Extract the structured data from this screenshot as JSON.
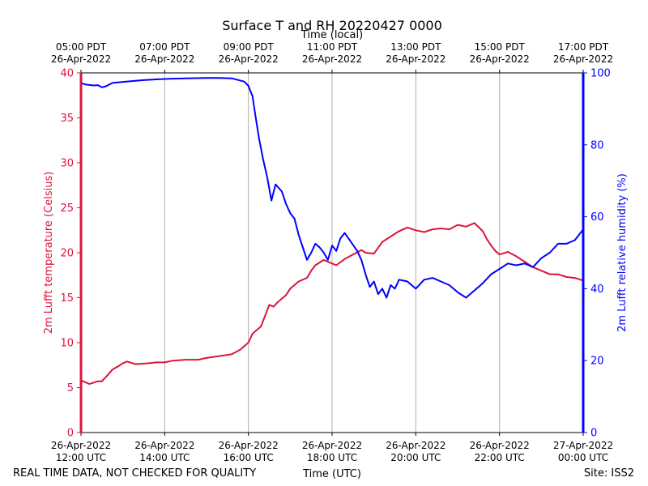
{
  "chart_data": {
    "type": "line",
    "title": "Surface T and RH 20220427 0000",
    "top_axis_title": "Time (local)",
    "bottom_axis_title": "Time (UTC)",
    "footer_left": "REAL TIME DATA, NOT CHECKED FOR QUALITY",
    "footer_right": "Site: ISS2",
    "x_range_hours": [
      12,
      24
    ],
    "x_ticks_utc": [
      {
        "h": 12,
        "date": "26-Apr-2022",
        "time": "12:00 UTC"
      },
      {
        "h": 14,
        "date": "26-Apr-2022",
        "time": "14:00 UTC"
      },
      {
        "h": 16,
        "date": "26-Apr-2022",
        "time": "16:00 UTC"
      },
      {
        "h": 18,
        "date": "26-Apr-2022",
        "time": "18:00 UTC"
      },
      {
        "h": 20,
        "date": "26-Apr-2022",
        "time": "20:00 UTC"
      },
      {
        "h": 22,
        "date": "26-Apr-2022",
        "time": "22:00 UTC"
      },
      {
        "h": 24,
        "date": "27-Apr-2022",
        "time": "00:00 UTC"
      }
    ],
    "x_ticks_local": [
      {
        "h": 12,
        "time": "05:00 PDT",
        "date": "26-Apr-2022"
      },
      {
        "h": 14,
        "time": "07:00 PDT",
        "date": "26-Apr-2022"
      },
      {
        "h": 16,
        "time": "09:00 PDT",
        "date": "26-Apr-2022"
      },
      {
        "h": 18,
        "time": "11:00 PDT",
        "date": "26-Apr-2022"
      },
      {
        "h": 20,
        "time": "13:00 PDT",
        "date": "26-Apr-2022"
      },
      {
        "h": 22,
        "time": "15:00 PDT",
        "date": "26-Apr-2022"
      },
      {
        "h": 24,
        "time": "17:00 PDT",
        "date": "26-Apr-2022"
      }
    ],
    "left_axis": {
      "label": "2m Lufft temperature (Celsius)",
      "ylim": [
        0,
        40
      ],
      "ticks": [
        "0",
        "5",
        "10",
        "15",
        "20",
        "25",
        "30",
        "35",
        "40"
      ],
      "color": "#dc143c"
    },
    "right_axis": {
      "label": "2m Lufft relative humidity (%)",
      "ylim": [
        0,
        100
      ],
      "ticks": [
        "0",
        "20",
        "40",
        "60",
        "80",
        "100"
      ],
      "color": "#0000ff"
    },
    "grid": "vertical",
    "series": [
      {
        "name": "2m Lufft temperature",
        "axis": "left",
        "color": "#dc143c",
        "x": [
          12.0,
          12.1,
          12.2,
          12.4,
          12.5,
          12.6,
          12.75,
          12.9,
          13.0,
          13.1,
          13.3,
          13.6,
          13.8,
          14.0,
          14.2,
          14.5,
          14.8,
          15.0,
          15.3,
          15.6,
          15.8,
          16.0,
          16.1,
          16.3,
          16.4,
          16.5,
          16.6,
          16.7,
          16.9,
          17.0,
          17.2,
          17.4,
          17.5,
          17.6,
          17.8,
          18.0,
          18.1,
          18.3,
          18.5,
          18.7,
          18.8,
          19.0,
          19.2,
          19.4,
          19.6,
          19.8,
          20.0,
          20.2,
          20.4,
          20.6,
          20.8,
          21.0,
          21.2,
          21.4,
          21.6,
          21.7,
          21.8,
          21.9,
          22.0,
          22.2,
          22.4,
          22.6,
          22.8,
          23.0,
          23.2,
          23.4,
          23.6,
          23.8,
          24.0
        ],
        "y": [
          5.8,
          5.6,
          5.4,
          5.7,
          5.7,
          6.2,
          7.0,
          7.4,
          7.7,
          7.9,
          7.6,
          7.7,
          7.8,
          7.8,
          8.0,
          8.1,
          8.1,
          8.3,
          8.5,
          8.7,
          9.2,
          10.0,
          11.0,
          11.8,
          13.0,
          14.2,
          14.0,
          14.5,
          15.3,
          16.0,
          16.8,
          17.2,
          18.0,
          18.6,
          19.2,
          18.8,
          18.6,
          19.3,
          19.8,
          20.3,
          20.0,
          19.9,
          21.2,
          21.8,
          22.4,
          22.8,
          22.5,
          22.3,
          22.6,
          22.7,
          22.6,
          23.1,
          22.9,
          23.3,
          22.4,
          21.5,
          20.8,
          20.2,
          19.8,
          20.1,
          19.6,
          19.0,
          18.4,
          18.0,
          17.6,
          17.6,
          17.3,
          17.2,
          16.9
        ]
      },
      {
        "name": "2m Lufft relative humidity",
        "axis": "right",
        "color": "#0000ff",
        "x": [
          12.0,
          12.1,
          12.3,
          12.4,
          12.5,
          12.6,
          12.75,
          13.0,
          13.3,
          13.5,
          13.8,
          14.0,
          14.2,
          14.5,
          15.0,
          15.3,
          15.6,
          15.9,
          16.0,
          16.1,
          16.15,
          16.25,
          16.35,
          16.45,
          16.55,
          16.65,
          16.8,
          16.9,
          17.0,
          17.1,
          17.2,
          17.3,
          17.4,
          17.5,
          17.6,
          17.7,
          17.8,
          17.9,
          18.0,
          18.1,
          18.2,
          18.3,
          18.45,
          18.6,
          18.7,
          18.8,
          18.9,
          19.0,
          19.1,
          19.2,
          19.3,
          19.4,
          19.5,
          19.6,
          19.8,
          20.0,
          20.2,
          20.4,
          20.6,
          20.8,
          21.0,
          21.2,
          21.4,
          21.6,
          21.8,
          22.0,
          22.2,
          22.4,
          22.6,
          22.8,
          23.0,
          23.2,
          23.4,
          23.6,
          23.8,
          24.0
        ],
        "y": [
          97.2,
          96.8,
          96.5,
          96.6,
          96.0,
          96.3,
          97.2,
          97.5,
          97.8,
          98.0,
          98.2,
          98.3,
          98.4,
          98.5,
          98.6,
          98.6,
          98.5,
          97.6,
          96.4,
          93.5,
          89.5,
          82.0,
          76.0,
          71.0,
          64.5,
          69.0,
          67.0,
          63.5,
          61.0,
          59.5,
          55.0,
          51.5,
          48.0,
          50.0,
          52.5,
          51.5,
          50.0,
          48.0,
          52.0,
          50.5,
          54.0,
          55.5,
          53.0,
          50.5,
          48.0,
          44.0,
          40.5,
          42.0,
          38.5,
          40.0,
          37.5,
          41.0,
          40.0,
          42.5,
          42.0,
          40.0,
          42.5,
          43.0,
          42.0,
          41.0,
          39.0,
          37.5,
          39.5,
          41.5,
          44.0,
          45.5,
          47.0,
          46.5,
          47.0,
          46.0,
          48.5,
          50.0,
          52.5,
          52.5,
          53.5,
          56.5
        ]
      }
    ]
  }
}
